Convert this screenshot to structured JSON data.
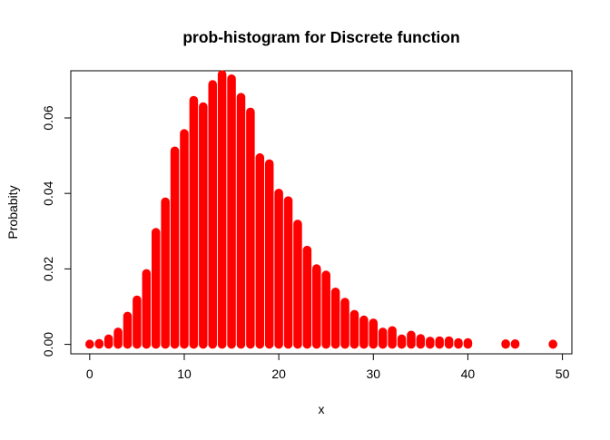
{
  "chart_data": {
    "type": "bar",
    "title": "prob-histogram for Discrete function",
    "xlabel": "x",
    "ylabel": "Probabity",
    "xlim": [
      -2,
      51
    ],
    "ylim": [
      -0.0025,
      0.0725
    ],
    "x_ticks": [
      0,
      10,
      20,
      30,
      40,
      50
    ],
    "y_ticks": [
      0.0,
      0.02,
      0.04,
      0.06
    ],
    "x_tick_labels": [
      "0",
      "10",
      "20",
      "30",
      "40",
      "50"
    ],
    "y_tick_labels": [
      "0.00",
      "0.02",
      "0.04",
      "0.06"
    ],
    "grid": false,
    "legend": "none",
    "bar_color": "#ff0000",
    "x": [
      0,
      1,
      2,
      3,
      4,
      5,
      6,
      7,
      8,
      9,
      10,
      11,
      12,
      13,
      14,
      15,
      16,
      17,
      18,
      19,
      20,
      21,
      22,
      23,
      24,
      25,
      26,
      27,
      28,
      29,
      30,
      31,
      32,
      33,
      34,
      35,
      36,
      37,
      38,
      39,
      40,
      44,
      45,
      49
    ],
    "values": [
      0.0001,
      0.0003,
      0.0015,
      0.0033,
      0.0075,
      0.0118,
      0.0188,
      0.0297,
      0.0378,
      0.0513,
      0.0559,
      0.0647,
      0.063,
      0.0689,
      0.0715,
      0.0704,
      0.0655,
      0.0616,
      0.0495,
      0.0479,
      0.0401,
      0.0381,
      0.0319,
      0.025,
      0.0201,
      0.0184,
      0.0139,
      0.0112,
      0.008,
      0.0065,
      0.0057,
      0.0033,
      0.0037,
      0.0015,
      0.0025,
      0.0016,
      0.0009,
      0.001,
      0.001,
      0.0005,
      0.0005,
      0.0002,
      0.0002,
      0.0001
    ]
  }
}
